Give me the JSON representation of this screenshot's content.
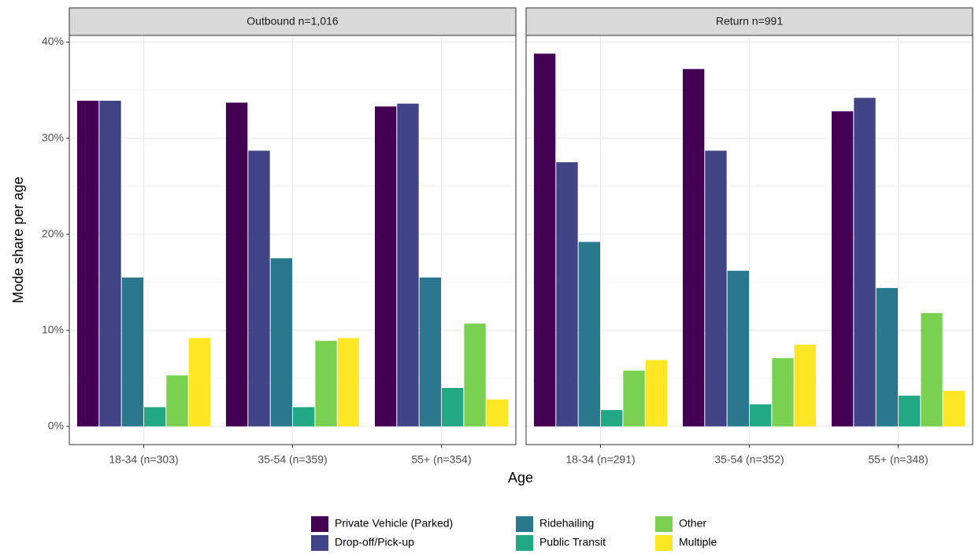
{
  "chart_data": {
    "type": "bar",
    "y_label": "Mode share per age",
    "x_label": "Age",
    "ylim": [
      -1.9,
      40.7
    ],
    "yticks": [
      {
        "value": 0,
        "label": "0%"
      },
      {
        "value": 10,
        "label": "10%"
      },
      {
        "value": 20,
        "label": "20%"
      },
      {
        "value": 30,
        "label": "30%"
      },
      {
        "value": 40,
        "label": "40%"
      }
    ],
    "grid": true,
    "legend": "bottom",
    "series": [
      {
        "name": "Private Vehicle (Parked)",
        "color": "#440154"
      },
      {
        "name": "Drop-off/Pick-up",
        "color": "#414487"
      },
      {
        "name": "Ridehailing",
        "color": "#2a788e"
      },
      {
        "name": "Public Transit",
        "color": "#22a884"
      },
      {
        "name": "Other",
        "color": "#7ad151"
      },
      {
        "name": "Multiple",
        "color": "#fde725"
      }
    ],
    "facets": [
      {
        "title": "Outbound n=1,016",
        "categories": [
          "18-34 (n=303)",
          "35-54 (n=359)",
          "55+ (n=354)"
        ],
        "series": [
          {
            "values": [
              33.9,
              33.7,
              33.3
            ]
          },
          {
            "values": [
              33.9,
              28.7,
              33.6
            ]
          },
          {
            "values": [
              15.5,
              17.5,
              15.5
            ]
          },
          {
            "values": [
              2.0,
              2.0,
              4.0
            ]
          },
          {
            "values": [
              5.3,
              8.9,
              10.7
            ]
          },
          {
            "values": [
              9.2,
              9.2,
              2.8
            ]
          }
        ]
      },
      {
        "title": "Return n=991",
        "categories": [
          "18-34 (n=291)",
          "35-54 (n=352)",
          "55+ (n=348)"
        ],
        "series": [
          {
            "values": [
              38.8,
              37.2,
              32.8
            ]
          },
          {
            "values": [
              27.5,
              28.7,
              34.2
            ]
          },
          {
            "values": [
              19.2,
              16.2,
              14.4
            ]
          },
          {
            "values": [
              1.7,
              2.3,
              3.2
            ]
          },
          {
            "values": [
              5.8,
              7.1,
              11.8
            ]
          },
          {
            "values": [
              6.9,
              8.5,
              3.7
            ]
          }
        ]
      }
    ]
  }
}
